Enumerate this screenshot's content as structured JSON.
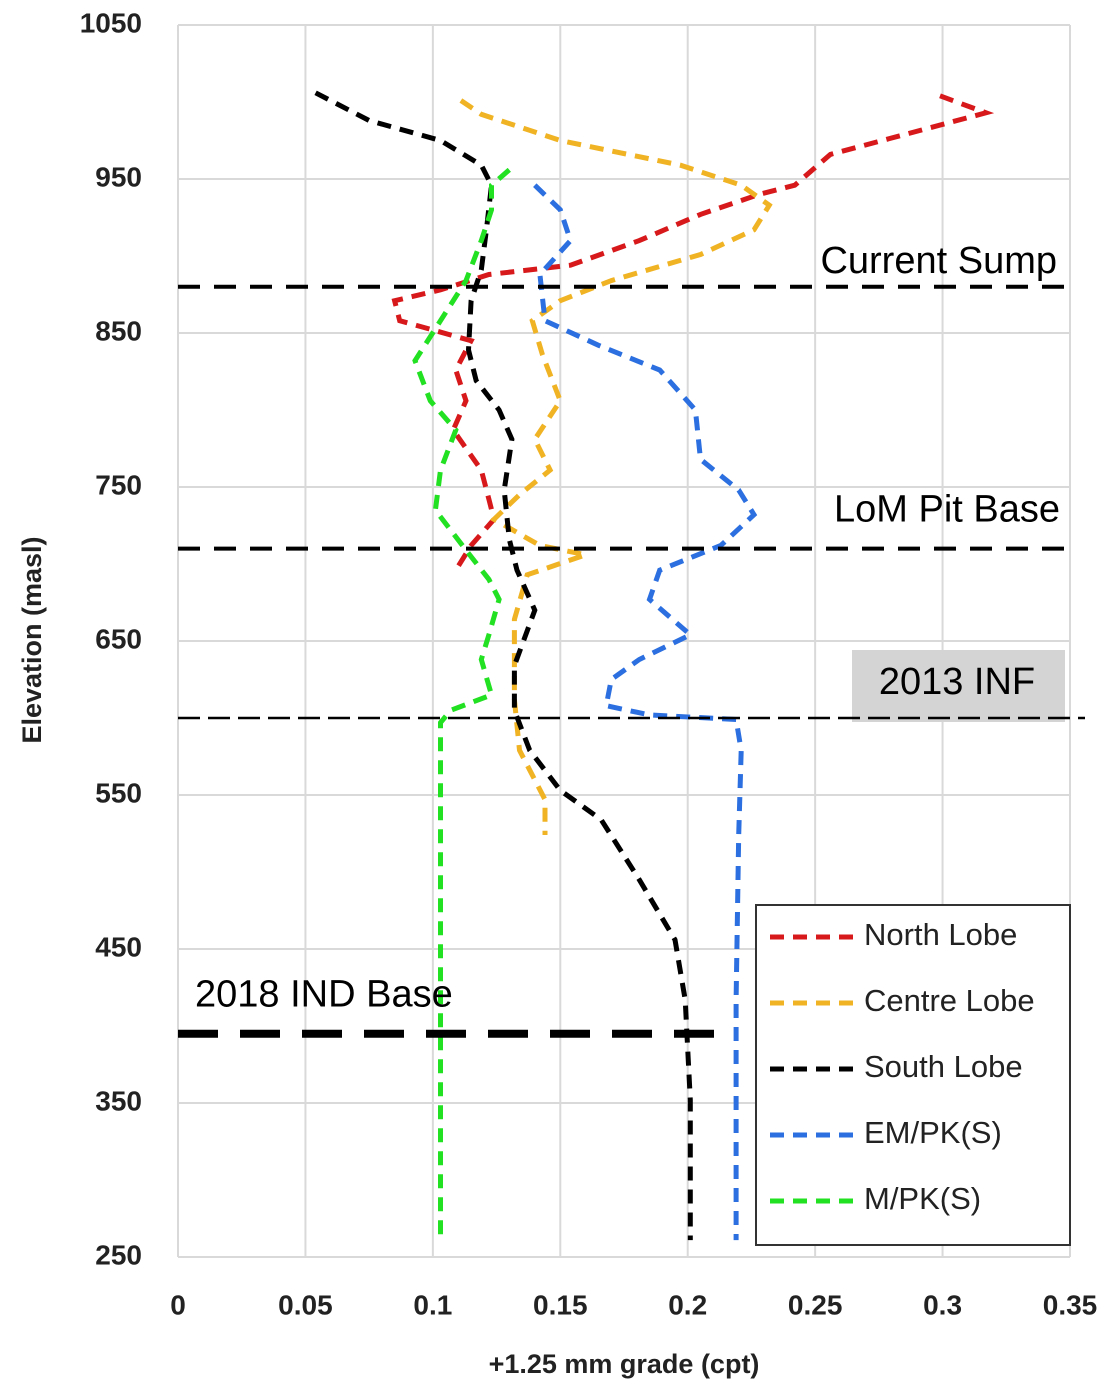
{
  "chart_data": {
    "type": "line",
    "xlabel": "+1.25 mm grade (cpt)",
    "ylabel": "Elevation (masl)",
    "xlim": [
      0,
      0.35
    ],
    "xticks": [
      0,
      0.05,
      0.1,
      0.15,
      0.2,
      0.25,
      0.3,
      0.35
    ],
    "ylim": [
      250,
      1050
    ],
    "yticks": [
      250,
      350,
      450,
      550,
      650,
      750,
      850,
      950,
      1050
    ],
    "grid": true,
    "legend": "lower right",
    "line_style": "dashed",
    "reference_lines": [
      {
        "label": "Current Sump",
        "value": 880
      },
      {
        "label": "LoM Pit Base",
        "value": 710
      },
      {
        "label": "2013 INF",
        "value": 600
      },
      {
        "label": "2018 IND Base",
        "value": 395
      }
    ],
    "series": [
      {
        "name": "North Lobe",
        "color": "#d7191c",
        "x": [
          0.299,
          0.317,
          0.256,
          0.242,
          0.228,
          0.205,
          0.181,
          0.154,
          0.122,
          0.103,
          0.085,
          0.087,
          0.115,
          0.109,
          0.113,
          0.108,
          0.119,
          0.122,
          0.124,
          0.115,
          0.109
        ],
        "y": [
          1004,
          993,
          966,
          946,
          940,
          927,
          910,
          894,
          888,
          878,
          871,
          858,
          845,
          826,
          806,
          787,
          761,
          742,
          729,
          712,
          696
        ]
      },
      {
        "name": "Centre Lobe",
        "color": "#f0b323",
        "x": [
          0.111,
          0.119,
          0.15,
          0.197,
          0.221,
          0.232,
          0.226,
          0.205,
          0.17,
          0.15,
          0.139,
          0.143,
          0.15,
          0.14,
          0.146,
          0.134,
          0.124,
          0.142,
          0.16,
          0.137,
          0.132,
          0.132,
          0.134,
          0.144,
          0.144
        ],
        "y": [
          1001,
          992,
          975,
          959,
          946,
          933,
          917,
          901,
          884,
          871,
          858,
          836,
          806,
          781,
          761,
          745,
          729,
          712,
          706,
          693,
          664,
          612,
          579,
          547,
          524
        ]
      },
      {
        "name": "South Lobe",
        "color": "#000000",
        "x": [
          0.054,
          0.075,
          0.103,
          0.119,
          0.123,
          0.121,
          0.119,
          0.115,
          0.114,
          0.117,
          0.126,
          0.131,
          0.128,
          0.13,
          0.133,
          0.14,
          0.132,
          0.132,
          0.138,
          0.15,
          0.166,
          0.181,
          0.195,
          0.199,
          0.201,
          0.201
        ],
        "y": [
          1006,
          988,
          975,
          959,
          946,
          917,
          891,
          871,
          839,
          819,
          800,
          781,
          748,
          716,
          696,
          670,
          634,
          605,
          579,
          553,
          534,
          495,
          456,
          417,
          352,
          261
        ]
      },
      {
        "name": "EM/PK(S)",
        "color": "#2b6fe0",
        "x": [
          0.14,
          0.15,
          0.154,
          0.142,
          0.144,
          0.165,
          0.189,
          0.203,
          0.205,
          0.22,
          0.226,
          0.213,
          0.189,
          0.185,
          0.201,
          0.181,
          0.17,
          0.168,
          0.185,
          0.219,
          0.221,
          0.22,
          0.219,
          0.219
        ],
        "y": [
          946,
          930,
          910,
          888,
          858,
          842,
          826,
          800,
          768,
          748,
          732,
          712,
          696,
          677,
          654,
          638,
          625,
          608,
          602,
          599,
          579,
          524,
          417,
          261
        ]
      },
      {
        "name": "M/PK(S)",
        "color": "#22e022",
        "x": [
          0.13,
          0.123,
          0.123,
          0.119,
          0.113,
          0.103,
          0.093,
          0.099,
          0.109,
          0.103,
          0.101,
          0.113,
          0.122,
          0.126,
          0.122,
          0.119,
          0.123,
          0.107,
          0.103,
          0.103
        ],
        "y": [
          956,
          946,
          930,
          910,
          884,
          858,
          832,
          806,
          787,
          761,
          735,
          709,
          690,
          677,
          654,
          638,
          615,
          605,
          597,
          261
        ]
      }
    ]
  }
}
